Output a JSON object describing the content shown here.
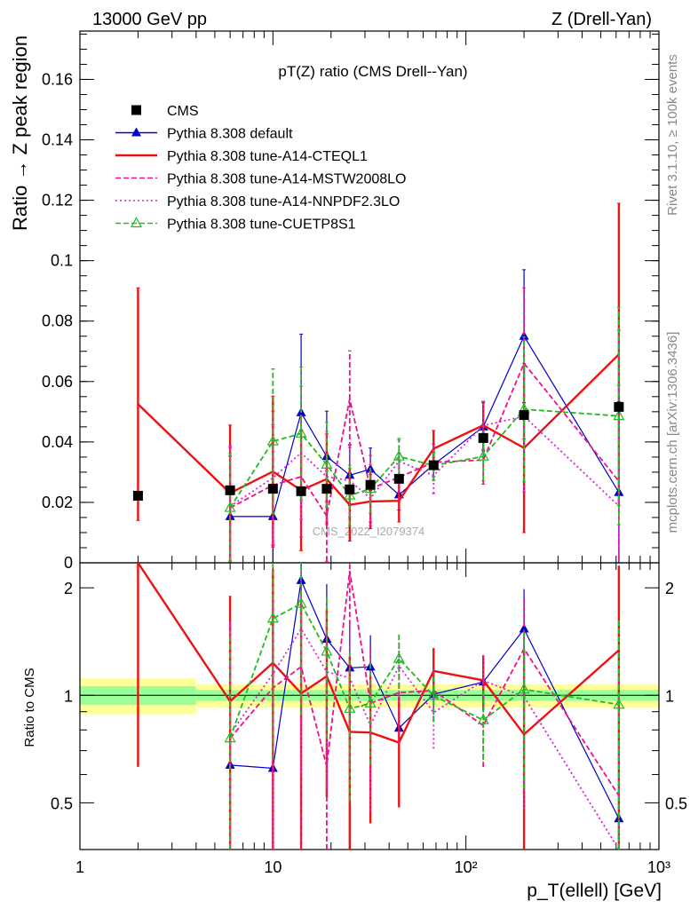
{
  "header": {
    "left": "13000 GeV pp",
    "right": "Z (Drell-Yan)"
  },
  "side_labels": {
    "rivet": "Rivet 3.1.10, ≥ 100k events",
    "mcplots": "mcplots.cern.ch [arXiv:1306.3436]"
  },
  "chart_data": {
    "type": "line",
    "title": "pT(Z) ratio (CMS Drell--Yan)",
    "xlabel": "p_T(ellell) [GeV]",
    "ylabel": "Ratio → Z peak region",
    "ratio_ylabel": "Ratio to CMS",
    "watermark": "CMS_2022_I2079374",
    "x_scale": "log",
    "xlim": [
      1,
      1000
    ],
    "ylim": [
      0,
      0.176
    ],
    "ratio_ylim": [
      0.37,
      2.35
    ],
    "ratio_scale": "log",
    "x_ticks": [
      "1",
      "10",
      "10²",
      "10³"
    ],
    "y_ticks": [
      "0",
      "0.02",
      "0.04",
      "0.06",
      "0.08",
      "0.1",
      "0.12",
      "0.14",
      "0.16"
    ],
    "ratio_ticks": [
      "0.5",
      "1",
      "2"
    ],
    "legend_position": "top-left",
    "x": [
      2,
      6,
      10,
      14,
      19,
      25,
      32,
      45,
      68,
      123,
      200,
      620
    ],
    "data": {
      "name": "CMS",
      "values": [
        0.0222,
        0.024,
        0.0245,
        0.0237,
        0.0245,
        0.0243,
        0.0258,
        0.0278,
        0.0323,
        0.0413,
        0.0489,
        0.0516
      ],
      "errors": [
        0.0008,
        0.0008,
        0.0008,
        0.0008,
        0.0008,
        0.0008,
        0.0008,
        0.0008,
        0.001,
        0.0012,
        0.0015,
        0.002
      ]
    },
    "series": [
      {
        "name": "Pythia 8.308 default",
        "color": "#0000cc",
        "style": "solid",
        "marker": "triangle-filled",
        "values": [
          null,
          0.0153,
          0.0153,
          0.0497,
          0.0352,
          0.029,
          0.031,
          0.0225,
          0.0325,
          0.045,
          0.075,
          0.0233
        ],
        "errors": [
          null,
          0.02,
          0.025,
          0.026,
          0.015,
          0.01,
          0.007,
          0.005,
          0.004,
          0.008,
          0.022,
          0.03
        ]
      },
      {
        "name": "Pythia 8.308 tune-A14-CTEQL1",
        "color": "#ee1111",
        "style": "solid",
        "marker": "none",
        "values": [
          0.0525,
          0.0231,
          0.0302,
          0.024,
          0.0277,
          0.0192,
          0.0203,
          0.0205,
          0.0378,
          0.0455,
          0.038,
          0.069
        ],
        "errors": [
          0.0385,
          0.0225,
          0.025,
          0.02,
          0.015,
          0.012,
          0.009,
          0.007,
          0.006,
          0.008,
          0.028,
          0.05
        ]
      },
      {
        "name": "Pythia 8.308 tune-A14-MSTW2008LO",
        "color": "#ee1188",
        "style": "dashed",
        "marker": "none",
        "values": [
          null,
          0.0182,
          0.0257,
          0.0285,
          0.0155,
          0.0542,
          0.0245,
          0.0283,
          0.0333,
          0.034,
          0.066,
          0.027
        ],
        "errors": [
          null,
          0.02,
          0.02,
          0.02,
          0.015,
          0.016,
          0.011,
          0.008,
          0.006,
          0.008,
          0.025,
          0.05
        ]
      },
      {
        "name": "Pythia 8.308 tune-A14-NNPDF2.3LO",
        "color": "#dd22dd",
        "style": "dotted",
        "marker": "none",
        "values": [
          null,
          0.0187,
          0.0281,
          0.0364,
          0.0285,
          0.0272,
          0.0213,
          0.0336,
          0.0289,
          0.0454,
          0.0485,
          0.0188
        ],
        "errors": [
          null,
          0.02,
          0.022,
          0.022,
          0.015,
          0.012,
          0.009,
          0.007,
          0.006,
          0.008,
          0.025,
          0.04
        ]
      },
      {
        "name": "Pythia 8.308 tune-CUETP8S1",
        "color": "#22bb22",
        "style": "dashed",
        "marker": "triangle-open",
        "values": [
          null,
          0.0182,
          0.0402,
          0.0428,
          0.0325,
          0.0223,
          0.0245,
          0.0352,
          0.0322,
          0.0352,
          0.0508,
          0.0486
        ],
        "errors": [
          null,
          0.018,
          0.024,
          0.022,
          0.014,
          0.01,
          0.008,
          0.006,
          0.005,
          0.008,
          0.024,
          0.036
        ]
      }
    ],
    "uncertainty_bands": {
      "colors": [
        "#ffff99",
        "#99ff99"
      ],
      "edges": [
        1,
        4,
        1000
      ],
      "outer": [
        0.115,
        0.075
      ],
      "inner": [
        0.06,
        0.035
      ]
    }
  }
}
